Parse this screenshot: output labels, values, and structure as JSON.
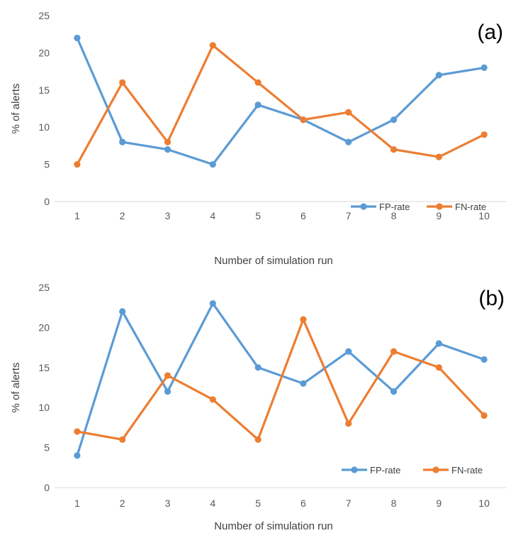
{
  "chart_data": [
    {
      "type": "line",
      "panel_label": "(a)",
      "categories": [
        "1",
        "2",
        "3",
        "4",
        "5",
        "6",
        "7",
        "8",
        "9",
        "10"
      ],
      "xlabel": "Number of simulation run",
      "ylabel": "% of alerts",
      "ylim": [
        0,
        25
      ],
      "yticks": [
        "0",
        "5",
        "10",
        "15",
        "20",
        "25"
      ],
      "grid": false,
      "legend_position": "bottom-right",
      "series": [
        {
          "name": "FP-rate",
          "color": "#5b9bd5",
          "values": [
            22,
            8,
            7,
            5,
            13,
            11,
            8,
            11,
            17,
            18
          ]
        },
        {
          "name": "FN-rate",
          "color": "#ed7d31",
          "values": [
            5,
            16,
            8,
            21,
            16,
            11,
            12,
            7,
            6,
            9
          ]
        }
      ]
    },
    {
      "type": "line",
      "panel_label": "(b)",
      "categories": [
        "1",
        "2",
        "3",
        "4",
        "5",
        "6",
        "7",
        "8",
        "9",
        "10"
      ],
      "xlabel": "Number of simulation run",
      "ylabel": "% of alerts",
      "ylim": [
        0,
        25
      ],
      "yticks": [
        "0",
        "5",
        "10",
        "15",
        "20",
        "25"
      ],
      "grid": false,
      "legend_position": "bottom-right",
      "series": [
        {
          "name": "FP-rate",
          "color": "#5b9bd5",
          "values": [
            4,
            22,
            12,
            23,
            15,
            13,
            17,
            12,
            18,
            16
          ]
        },
        {
          "name": "FN-rate",
          "color": "#ed7d31",
          "values": [
            7,
            6,
            14,
            11,
            6,
            21,
            8,
            17,
            15,
            9
          ]
        }
      ]
    }
  ]
}
